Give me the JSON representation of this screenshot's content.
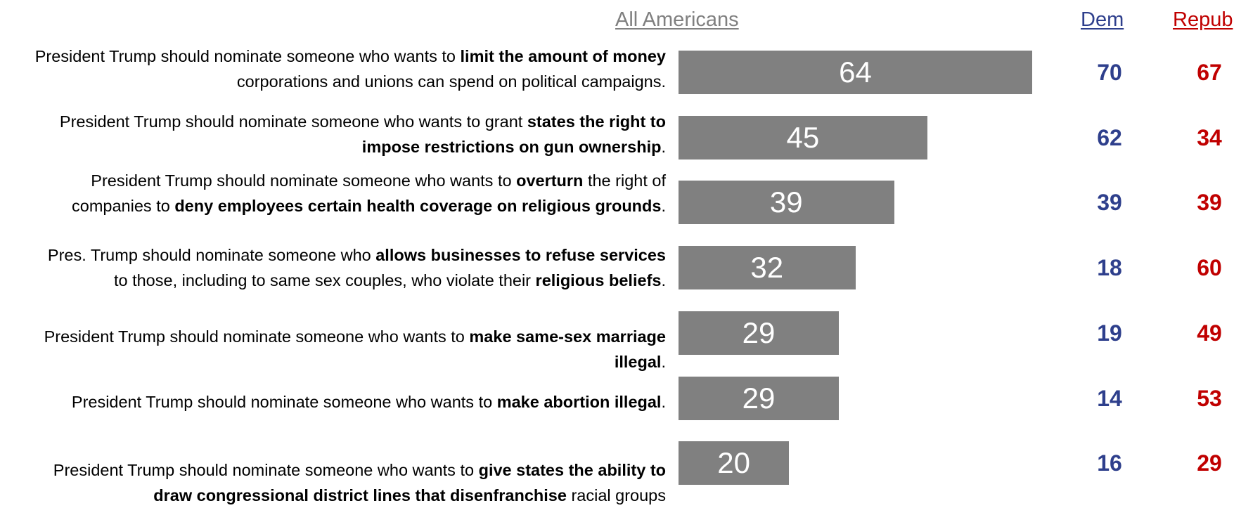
{
  "chart_data": {
    "type": "bar",
    "orientation": "horizontal",
    "headers": {
      "all": "All Americans",
      "dem": "Dem",
      "rep": "Repub"
    },
    "colors": {
      "bar": "#808080",
      "dem": "#2e3f8c",
      "rep": "#c00000",
      "header_all": "#808080"
    },
    "xlim": [
      0,
      100
    ],
    "rows": [
      {
        "segments": [
          {
            "t": "President Trump should nominate someone who wants to ",
            "b": false
          },
          {
            "t": "limit the amount of money",
            "b": true
          },
          {
            "t": " corporations and unions can spend on political campaigns.",
            "b": false
          }
        ],
        "all": 64,
        "dem": 70,
        "rep": 67
      },
      {
        "segments": [
          {
            "t": "President Trump should nominate someone who wants to grant ",
            "b": false
          },
          {
            "t": "states the right to impose restrictions on gun ownership",
            "b": true
          },
          {
            "t": ".",
            "b": false
          }
        ],
        "all": 45,
        "dem": 62,
        "rep": 34
      },
      {
        "segments": [
          {
            "t": "President Trump should nominate someone who wants to ",
            "b": false
          },
          {
            "t": "overturn",
            "b": true
          },
          {
            "t": " the right of companies to ",
            "b": false
          },
          {
            "t": "deny employees certain health coverage on religious grounds",
            "b": true
          },
          {
            "t": ".",
            "b": false
          }
        ],
        "all": 39,
        "dem": 39,
        "rep": 39
      },
      {
        "segments": [
          {
            "t": "Pres. Trump should nominate someone who ",
            "b": false
          },
          {
            "t": "allows businesses to refuse services",
            "b": true
          },
          {
            "t": " to those, including to same sex couples, who violate their ",
            "b": false
          },
          {
            "t": "religious beliefs",
            "b": true
          },
          {
            "t": ".",
            "b": false
          }
        ],
        "all": 32,
        "dem": 18,
        "rep": 60
      },
      {
        "segments": [
          {
            "t": "President Trump should nominate someone who wants to ",
            "b": false
          },
          {
            "t": "make same-sex marriage illegal",
            "b": true
          },
          {
            "t": ".",
            "b": false
          }
        ],
        "all": 29,
        "dem": 19,
        "rep": 49
      },
      {
        "segments": [
          {
            "t": "President Trump should nominate someone who wants to ",
            "b": false
          },
          {
            "t": "make abortion illegal",
            "b": true
          },
          {
            "t": ".",
            "b": false
          }
        ],
        "all": 29,
        "dem": 14,
        "rep": 53
      },
      {
        "segments": [
          {
            "t": "President Trump should nominate someone who wants to ",
            "b": false
          },
          {
            "t": "give states the ability to draw congressional district lines that disenfranchise",
            "b": true
          },
          {
            "t": " racial groups",
            "b": false
          }
        ],
        "all": 20,
        "dem": 16,
        "rep": 29
      }
    ]
  }
}
